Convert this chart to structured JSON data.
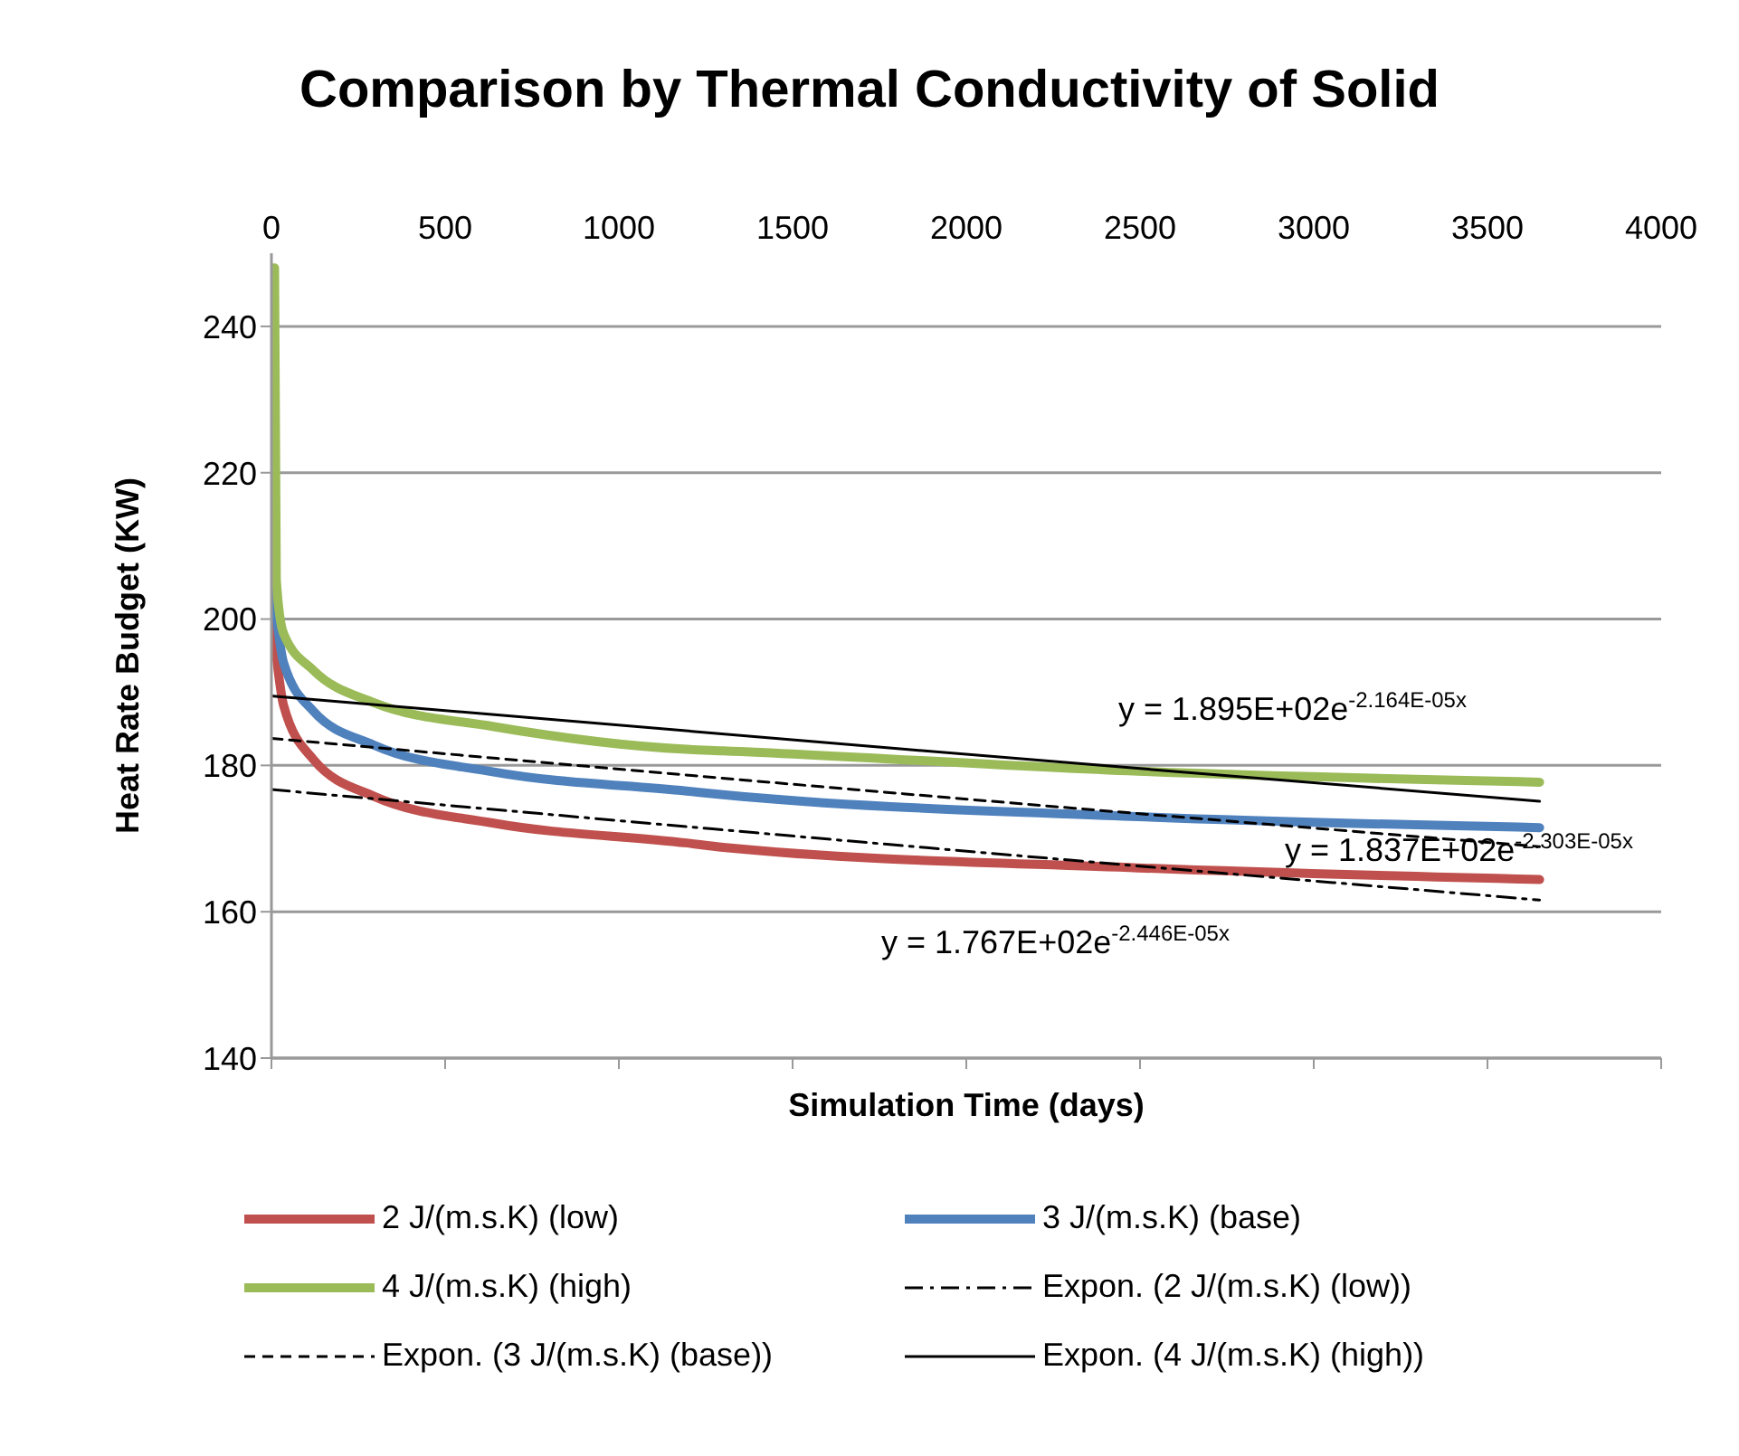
{
  "chart_data": {
    "type": "line",
    "title": "Comparison by Thermal Conductivity of Solid",
    "xlabel": "Simulation Time (days)",
    "ylabel": "Heat Rate Budget (KW)",
    "xlim": [
      0,
      4000
    ],
    "xticks": [
      0,
      500,
      1000,
      1500,
      2000,
      2500,
      3000,
      3500,
      4000
    ],
    "ylim": [
      140,
      250
    ],
    "yticks": [
      140,
      160,
      180,
      200,
      220,
      240
    ],
    "grid": "y",
    "legend": "bottom",
    "marker": "none",
    "series": [
      {
        "name": "2 J/(m.s.K) (low)",
        "color": "#c0504d",
        "line_style": "solid",
        "x": [
          3,
          35,
          121,
          294,
          640,
          1195,
          1300,
          2494,
          3650
        ],
        "values": [
          200,
          188.2,
          180.8,
          175.8,
          172.1,
          169.4,
          168.8,
          166,
          164.4
        ]
      },
      {
        "name": "3 J/(m.s.K) (base)",
        "color": "#4f81bd",
        "line_style": "solid",
        "x": [
          3,
          35,
          121,
          294,
          640,
          1195,
          1300,
          2494,
          3650
        ],
        "values": [
          205.4,
          194,
          187.4,
          182.8,
          179.1,
          176.5,
          176,
          173,
          171.5
        ]
      },
      {
        "name": "4 J/(m.s.K) (high)",
        "color": "#9bbb59",
        "line_style": "solid",
        "x": [
          0,
          9,
          14,
          35,
          121,
          294,
          640,
          1195,
          1300,
          2494,
          3650
        ],
        "values": [
          248,
          248,
          205.4,
          198,
          193,
          188.6,
          185.3,
          182.2,
          182,
          179.2,
          177.7
        ]
      },
      {
        "name": "Expon. (2 J/(m.s.K) (low))",
        "color": "#000000",
        "line_style": "dashdot",
        "x": [
          0,
          1825,
          3650
        ],
        "values": [
          176.7,
          169,
          161.6
        ]
      },
      {
        "name": "Expon. (3 J/(m.s.K) (base))",
        "color": "#000000",
        "line_style": "dashed",
        "x": [
          0,
          1825,
          3650
        ],
        "values": [
          183.7,
          176.1,
          168.9
        ]
      },
      {
        "name": "Expon. (4 J/(m.s.K) (high))",
        "color": "#000000",
        "line_style": "solid",
        "x": [
          0,
          1825,
          3650
        ],
        "values": [
          189.5,
          182.2,
          175.1
        ]
      }
    ],
    "annotations": [
      "y = 1.895E+02e$^{-2.164E-05x}$",
      "y = 1.837E+02e$^{-2.303E-05x}$",
      "y = 1.767E+02e$^{-2.446E-05x}$"
    ]
  }
}
